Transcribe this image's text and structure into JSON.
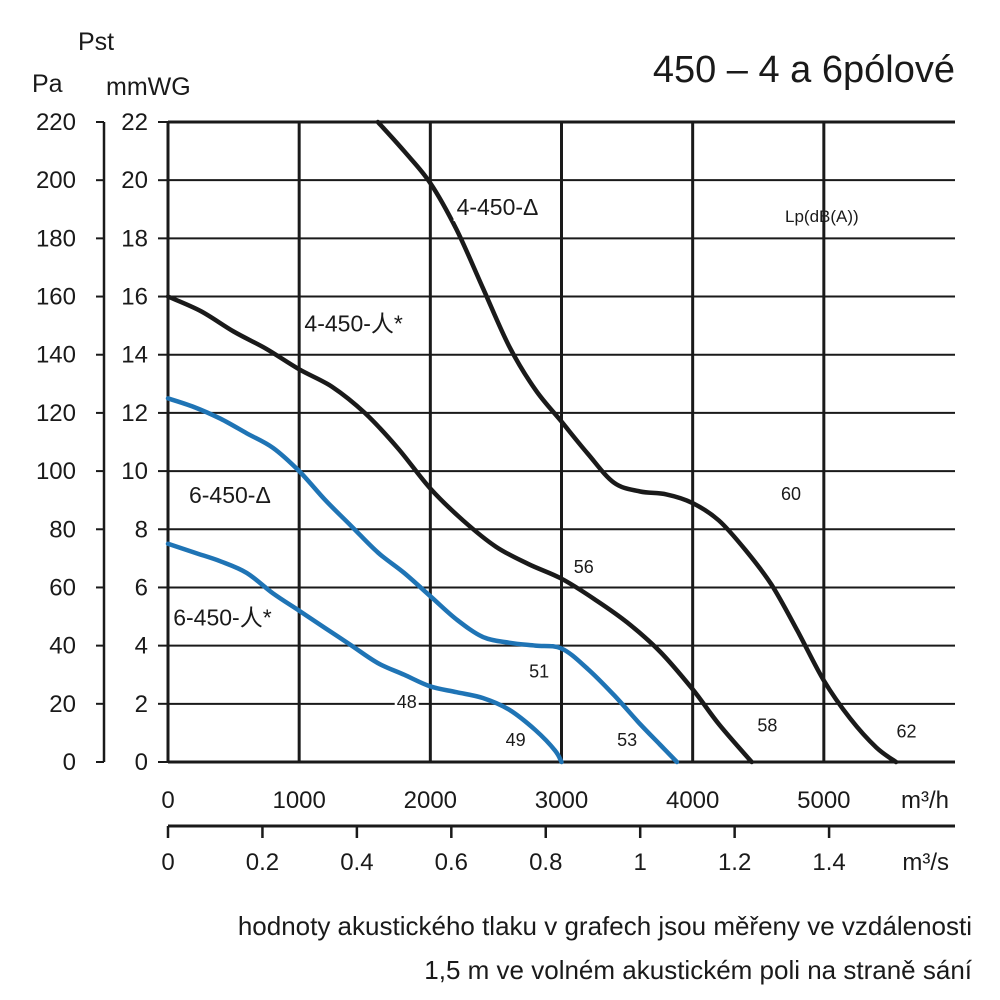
{
  "chart_data": {
    "type": "line",
    "title": "450 – 4 a 6pólové",
    "y_title": "Pst",
    "y_unit_left": "Pa",
    "y_unit_right": "mmWG",
    "x_unit_top": "m³/h",
    "x_unit_bottom": "m³/s",
    "xlim": [
      0,
      6000
    ],
    "ylim_mmwg": [
      0,
      22
    ],
    "ylim_pa": [
      0,
      220
    ],
    "grid": true,
    "x_ticks": [
      "0",
      "1000",
      "2000",
      "3000",
      "4000",
      "5000"
    ],
    "y_ticks_mmwg": [
      "0",
      "2",
      "4",
      "6",
      "8",
      "10",
      "12",
      "14",
      "16",
      "18",
      "20",
      "22"
    ],
    "y_ticks_pa": [
      "0",
      "20",
      "40",
      "60",
      "80",
      "100",
      "120",
      "140",
      "160",
      "180",
      "200",
      "220"
    ],
    "x2_ticks": [
      "0",
      "0.2",
      "0.4",
      "0.6",
      "0.8",
      "1",
      "1.2",
      "1.4"
    ],
    "lp_label": "Lp(dB(A))",
    "series": [
      {
        "name": "4-450-Δ",
        "color": "#1a1a1a",
        "x": [
          1600,
          1800,
          2000,
          2200,
          2400,
          2600,
          2800,
          3000,
          3200,
          3400,
          3600,
          3800,
          4000,
          4200,
          4400,
          4600,
          4800,
          5000,
          5200,
          5400,
          5550
        ],
        "y": [
          22,
          21,
          19.9,
          18.3,
          16.3,
          14.3,
          12.8,
          11.7,
          10.6,
          9.6,
          9.3,
          9.2,
          8.9,
          8.3,
          7.3,
          6.1,
          4.5,
          2.8,
          1.5,
          0.5,
          0
        ]
      },
      {
        "name": "4-450-人*",
        "color": "#1a1a1a",
        "x": [
          0,
          250,
          500,
          750,
          1000,
          1250,
          1500,
          1750,
          2000,
          2250,
          2500,
          2750,
          3000,
          3250,
          3500,
          3750,
          4000,
          4200,
          4450
        ],
        "y": [
          16,
          15.5,
          14.8,
          14.2,
          13.5,
          12.9,
          12.0,
          10.8,
          9.4,
          8.3,
          7.4,
          6.8,
          6.3,
          5.6,
          4.8,
          3.8,
          2.5,
          1.3,
          0
        ]
      },
      {
        "name": "6-450-Δ",
        "color": "#1f74b5",
        "x": [
          0,
          200,
          400,
          600,
          800,
          1000,
          1200,
          1400,
          1600,
          1800,
          2000,
          2200,
          2400,
          2600,
          2800,
          3000,
          3200,
          3400,
          3600,
          3750,
          3880
        ],
        "y": [
          12.5,
          12.2,
          11.8,
          11.3,
          10.8,
          10.0,
          9.0,
          8.1,
          7.2,
          6.5,
          5.7,
          4.9,
          4.3,
          4.1,
          4.0,
          3.9,
          3.2,
          2.3,
          1.3,
          0.6,
          0
        ]
      },
      {
        "name": "6-450-人*",
        "color": "#1f74b5",
        "x": [
          0,
          200,
          400,
          600,
          800,
          1000,
          1200,
          1400,
          1600,
          1800,
          2000,
          2200,
          2400,
          2600,
          2800,
          2950,
          3000
        ],
        "y": [
          7.5,
          7.2,
          6.9,
          6.5,
          5.8,
          5.2,
          4.6,
          4.0,
          3.4,
          3.0,
          2.6,
          2.4,
          2.2,
          1.8,
          1.1,
          0.4,
          0
        ]
      }
    ],
    "series_labels": [
      {
        "text": "4-450-Δ",
        "x": 2200,
        "y": 18.8,
        "size": 23,
        "anchor": "start"
      },
      {
        "text": "4-450-人*",
        "x": 1040,
        "y": 14.8,
        "size": 23,
        "anchor": "start"
      },
      {
        "text": "6-450-Δ",
        "x": 160,
        "y": 8.9,
        "size": 23,
        "anchor": "start"
      },
      {
        "text": "6-450-人*",
        "x": 40,
        "y": 4.7,
        "size": 23,
        "anchor": "start"
      }
    ],
    "db_labels": [
      {
        "text": "60",
        "x": 4750,
        "y": 9.0
      },
      {
        "text": "56",
        "x": 3170,
        "y": 6.5
      },
      {
        "text": "51",
        "x": 2830,
        "y": 2.9
      },
      {
        "text": "48",
        "x": 1820,
        "y": 1.85
      },
      {
        "text": "49",
        "x": 2650,
        "y": 0.55
      },
      {
        "text": "53",
        "x": 3500,
        "y": 0.55
      },
      {
        "text": "58",
        "x": 4570,
        "y": 1.05
      },
      {
        "text": "62",
        "x": 5630,
        "y": 0.85
      }
    ]
  },
  "caption": {
    "line1": "hodnoty akustického tlaku v grafech jsou měřeny ve vzdálenosti",
    "line2": "1,5 m ve volném akustickém poli na straně sání"
  }
}
